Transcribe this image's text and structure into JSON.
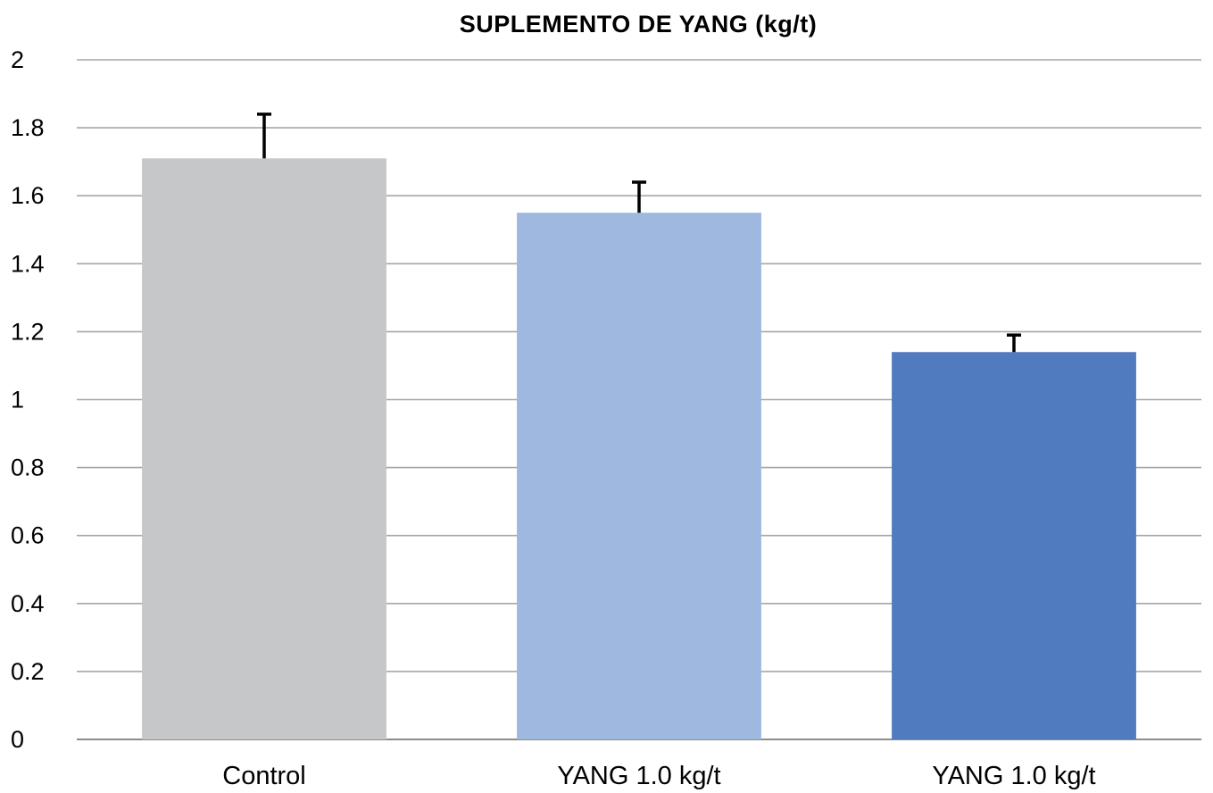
{
  "chart_data": {
    "type": "bar",
    "title": "SUPLEMENTO DE YANG (kg/t)",
    "xlabel": "",
    "ylabel": "",
    "categories": [
      "Control",
      "YANG 1.0 kg/t",
      "YANG 1.0 kg/t"
    ],
    "values": [
      1.71,
      1.55,
      1.14
    ],
    "error_plus": [
      0.13,
      0.09,
      0.05
    ],
    "colors": [
      "#c6c7c9",
      "#9eb8df",
      "#507bbe"
    ],
    "ylim": [
      0,
      2
    ],
    "yticks": [
      0,
      0.2,
      0.4,
      0.6,
      0.8,
      1,
      1.2,
      1.4,
      1.6,
      1.8,
      2
    ],
    "ytick_labels": [
      "0",
      "0.2",
      "0.4",
      "0.6",
      "0.8",
      "1",
      "1.2",
      "1.4",
      "1.6",
      "1.8",
      "2"
    ],
    "grid": true,
    "legend": "none"
  }
}
